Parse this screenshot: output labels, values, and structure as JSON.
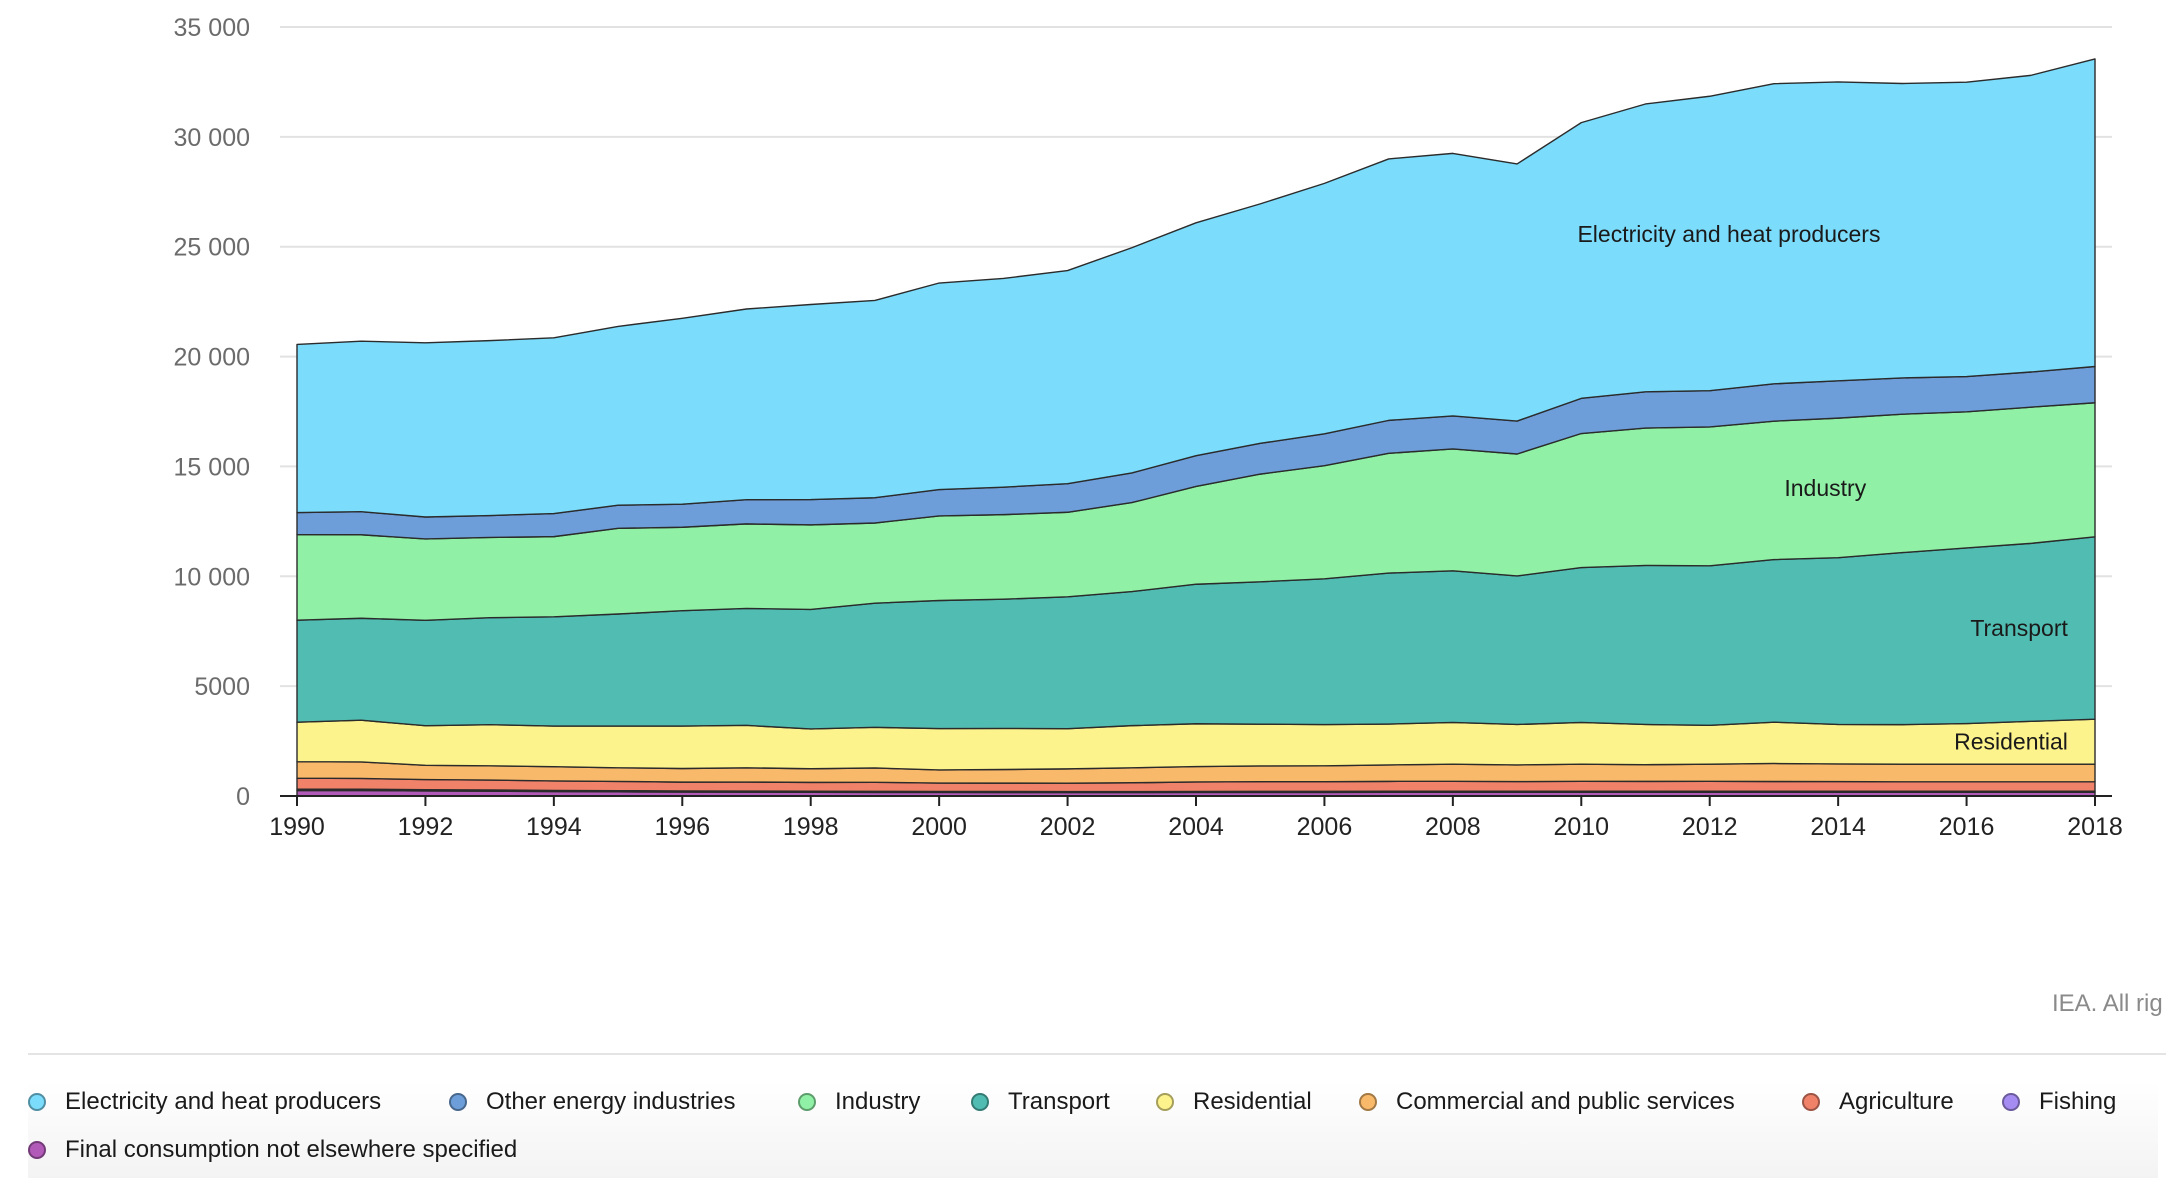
{
  "chart_data": {
    "type": "area",
    "stacked": true,
    "x": [
      1990,
      1991,
      1992,
      1993,
      1994,
      1995,
      1996,
      1997,
      1998,
      1999,
      2000,
      2001,
      2002,
      2003,
      2004,
      2005,
      2006,
      2007,
      2008,
      2009,
      2010,
      2011,
      2012,
      2013,
      2014,
      2015,
      2016,
      2017,
      2018
    ],
    "x_ticks": [
      "1990",
      "1992",
      "1994",
      "1996",
      "1998",
      "2000",
      "2002",
      "2004",
      "2006",
      "2008",
      "2010",
      "2012",
      "2014",
      "2016",
      "2018"
    ],
    "y_ticks": [
      "0",
      "5000",
      "10 000",
      "15 000",
      "20 000",
      "25 000",
      "30 000",
      "35 000"
    ],
    "ylim": [
      0,
      35000
    ],
    "grid": true,
    "series": [
      {
        "name": "Final consumption not elsewhere specified",
        "color": "#b15ab8",
        "values": [
          250,
          250,
          230,
          220,
          200,
          190,
          180,
          175,
          170,
          165,
          160,
          158,
          156,
          155,
          160,
          162,
          165,
          168,
          170,
          168,
          170,
          168,
          170,
          172,
          170,
          170,
          170,
          170,
          170
        ]
      },
      {
        "name": "Fishing",
        "color": "#a58cf2",
        "values": [
          60,
          60,
          58,
          56,
          55,
          54,
          52,
          50,
          50,
          50,
          48,
          48,
          48,
          48,
          48,
          48,
          48,
          48,
          48,
          48,
          48,
          48,
          48,
          48,
          48,
          48,
          48,
          48,
          48
        ]
      },
      {
        "name": "Agriculture",
        "color": "#f0826a",
        "values": [
          500,
          490,
          460,
          450,
          430,
          420,
          400,
          410,
          400,
          410,
          380,
          380,
          380,
          400,
          430,
          440,
          440,
          450,
          450,
          440,
          450,
          450,
          450,
          440,
          440,
          430,
          430,
          430,
          430
        ]
      },
      {
        "name": "Commercial and public services",
        "color": "#f9b96a",
        "values": [
          750,
          750,
          650,
          650,
          650,
          620,
          620,
          650,
          620,
          650,
          600,
          620,
          650,
          680,
          700,
          720,
          720,
          750,
          780,
          760,
          780,
          760,
          780,
          820,
          800,
          800,
          800,
          800,
          800
        ]
      },
      {
        "name": "Residential",
        "color": "#fdf38c",
        "values": [
          1800,
          1900,
          1800,
          1870,
          1850,
          1900,
          1930,
          1930,
          1810,
          1850,
          1880,
          1870,
          1830,
          1920,
          1950,
          1900,
          1880,
          1860,
          1900,
          1840,
          1900,
          1830,
          1770,
          1880,
          1800,
          1800,
          1850,
          1950,
          2050
        ]
      },
      {
        "name": "Transport",
        "color": "#51bdb2",
        "values": [
          4640,
          4640,
          4800,
          4870,
          4970,
          5100,
          5250,
          5320,
          5440,
          5650,
          5830,
          5880,
          6000,
          6100,
          6350,
          6480,
          6630,
          6870,
          6900,
          6760,
          7050,
          7240,
          7260,
          7400,
          7590,
          7830,
          7990,
          8100,
          8300
        ]
      },
      {
        "name": "Industry",
        "color": "#90f1a6",
        "values": [
          3900,
          3800,
          3700,
          3650,
          3650,
          3900,
          3800,
          3850,
          3850,
          3650,
          3850,
          3850,
          3850,
          4050,
          4450,
          4900,
          5150,
          5450,
          5550,
          5550,
          6100,
          6250,
          6320,
          6300,
          6350,
          6300,
          6200,
          6200,
          6100
        ]
      },
      {
        "name": "Other energy industries",
        "color": "#6d9ed9",
        "values": [
          1000,
          1050,
          1000,
          1000,
          1050,
          1050,
          1050,
          1100,
          1150,
          1150,
          1200,
          1250,
          1300,
          1350,
          1400,
          1400,
          1450,
          1500,
          1500,
          1500,
          1600,
          1650,
          1650,
          1700,
          1700,
          1650,
          1600,
          1600,
          1650
        ]
      },
      {
        "name": "Electricity and heat producers",
        "color": "#7bdcfb",
        "values": [
          7650,
          7760,
          7930,
          7960,
          8000,
          8140,
          8460,
          8680,
          8880,
          8980,
          9400,
          9500,
          9700,
          10250,
          10600,
          10900,
          11400,
          11900,
          11950,
          11700,
          12550,
          13100,
          13400,
          13660,
          13600,
          13400,
          13400,
          13500,
          14000
        ]
      }
    ],
    "area_labels": [
      {
        "series": "Electricity and heat producers",
        "text": "Electricity and heat producers"
      },
      {
        "series": "Industry",
        "text": "Industry"
      },
      {
        "series": "Transport",
        "text": "Transport"
      },
      {
        "series": "Residential",
        "text": "Residential"
      }
    ]
  },
  "credit": "IEA. All rig",
  "legend": [
    {
      "label": "Electricity and heat producers",
      "color": "#7bdcfb",
      "icon": "circle-icon"
    },
    {
      "label": "Other energy industries",
      "color": "#6d9ed9",
      "icon": "circle-icon"
    },
    {
      "label": "Industry",
      "color": "#90f1a6",
      "icon": "circle-icon"
    },
    {
      "label": "Transport",
      "color": "#51bdb2",
      "icon": "circle-icon"
    },
    {
      "label": "Residential",
      "color": "#fdf38c",
      "icon": "circle-icon"
    },
    {
      "label": "Commercial and public services",
      "color": "#f9b96a",
      "icon": "circle-icon"
    },
    {
      "label": "Agriculture",
      "color": "#f0826a",
      "icon": "circle-icon"
    },
    {
      "label": "Fishing",
      "color": "#a58cf2",
      "icon": "circle-icon"
    },
    {
      "label": "Final consumption not elsewhere specified",
      "color": "#b15ab8",
      "icon": "circle-icon"
    }
  ]
}
